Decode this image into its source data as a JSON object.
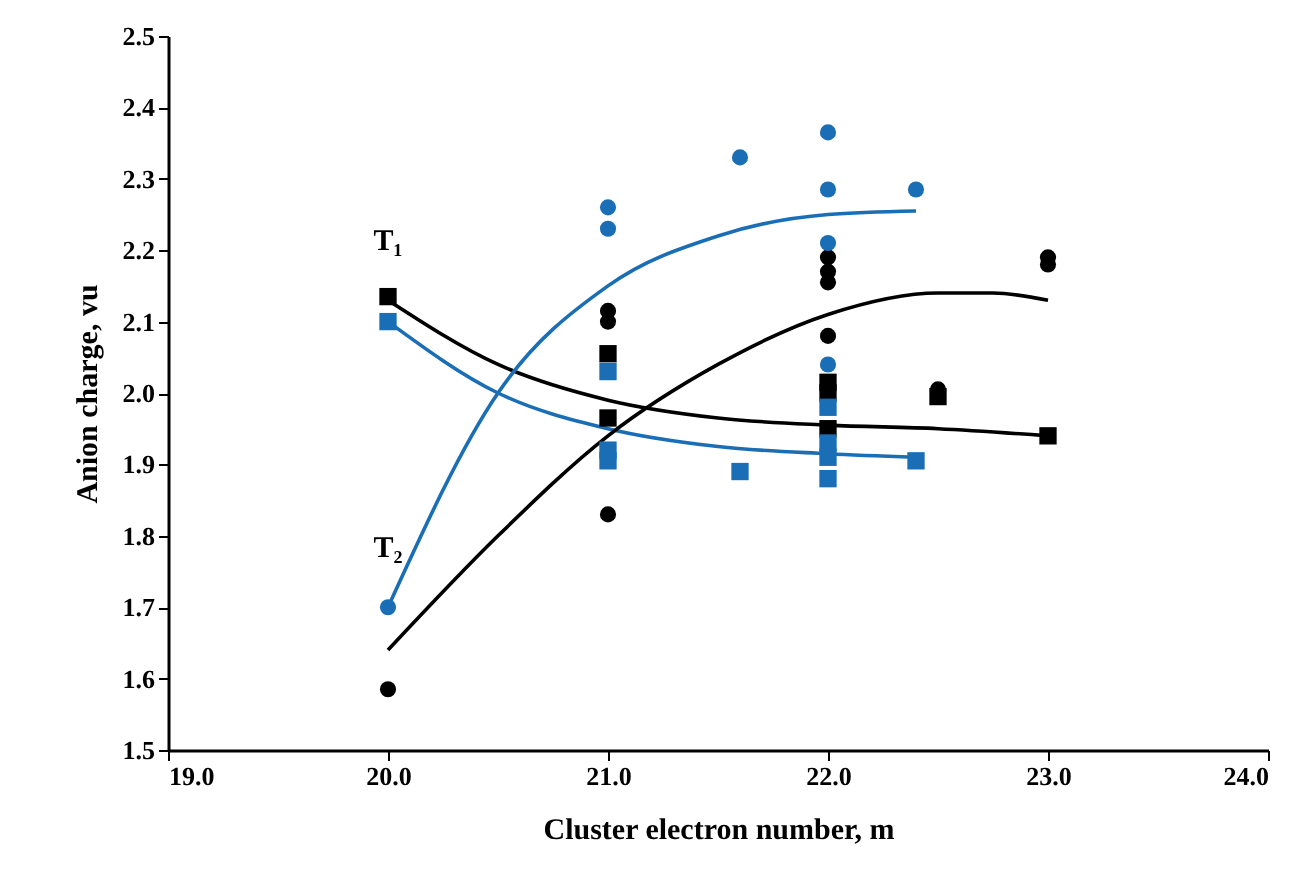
{
  "chart_data": {
    "type": "scatter",
    "xlabel": "Cluster electron number,  m",
    "ylabel": "Anion charge, vu",
    "xlim": [
      19,
      24
    ],
    "xticks": [
      {
        "value": 19,
        "label": "19.0"
      },
      {
        "value": 20,
        "label": "20.0"
      },
      {
        "value": 21,
        "label": "21.0"
      },
      {
        "value": 22,
        "label": "22.0"
      },
      {
        "value": 23,
        "label": "23.0"
      },
      {
        "value": 24,
        "label": "24.0"
      }
    ],
    "ylim": [
      1.5,
      2.5
    ],
    "yticks": [
      1.5,
      1.6,
      1.7,
      1.8,
      1.9,
      {
        "value": 2.0,
        "label": "2.0"
      },
      2.1,
      2.2,
      2.3,
      2.4,
      2.5
    ],
    "grid": false,
    "series": [
      {
        "type": "line",
        "color": "#000000",
        "marker": "none",
        "x": [
          20,
          20.5,
          21,
          21.5,
          22,
          22.5,
          23
        ],
        "values": [
          2.13,
          2.04,
          1.99,
          1.965,
          1.955,
          1.95,
          1.94
        ]
      },
      {
        "type": "line",
        "color": "#1a6eb5",
        "marker": "none",
        "x": [
          20,
          20.5,
          21,
          21.5,
          22,
          22.4
        ],
        "values": [
          2.1,
          2.0,
          1.95,
          1.925,
          1.915,
          1.91
        ]
      },
      {
        "type": "line",
        "color": "#000000",
        "marker": "none",
        "x": [
          20,
          20.5,
          21,
          21.5,
          22,
          22.5,
          22.75,
          23
        ],
        "values": [
          1.64,
          1.8,
          1.94,
          2.04,
          2.11,
          2.14,
          2.14,
          2.13
        ]
      },
      {
        "type": "line",
        "color": "#1a6eb5",
        "marker": "none",
        "x": [
          20,
          20.5,
          21,
          21.5,
          22,
          22.4
        ],
        "values": [
          1.7,
          2.0,
          2.15,
          2.22,
          2.25,
          2.255
        ]
      },
      {
        "color": "#000000",
        "marker": "square",
        "x": [
          20,
          21,
          21,
          22,
          22,
          22,
          22.5,
          23
        ],
        "values": [
          2.135,
          2.055,
          1.965,
          2.015,
          2.0,
          1.95,
          1.995,
          1.94
        ]
      },
      {
        "color": "#1a6eb5",
        "marker": "square",
        "x": [
          20,
          21,
          21,
          21,
          21.6,
          22,
          22,
          22,
          22,
          22.4
        ],
        "values": [
          2.1,
          2.03,
          1.92,
          1.905,
          1.89,
          1.98,
          1.93,
          1.91,
          1.88,
          1.905
        ]
      },
      {
        "color": "#000000",
        "marker": "circle",
        "x": [
          20,
          21,
          21,
          21,
          22,
          22,
          22,
          22,
          22.5,
          23,
          23
        ],
        "values": [
          1.585,
          2.115,
          2.1,
          1.83,
          2.19,
          2.17,
          2.155,
          2.08,
          2.005,
          2.19,
          2.18
        ]
      },
      {
        "color": "#1a6eb5",
        "marker": "circle",
        "x": [
          20,
          21,
          21,
          21.6,
          22,
          22,
          22,
          22,
          22.4
        ],
        "values": [
          1.7,
          2.26,
          2.23,
          2.33,
          2.365,
          2.285,
          2.21,
          2.04,
          2.285
        ]
      }
    ],
    "annotations": [
      "T₁",
      "T₂"
    ]
  }
}
